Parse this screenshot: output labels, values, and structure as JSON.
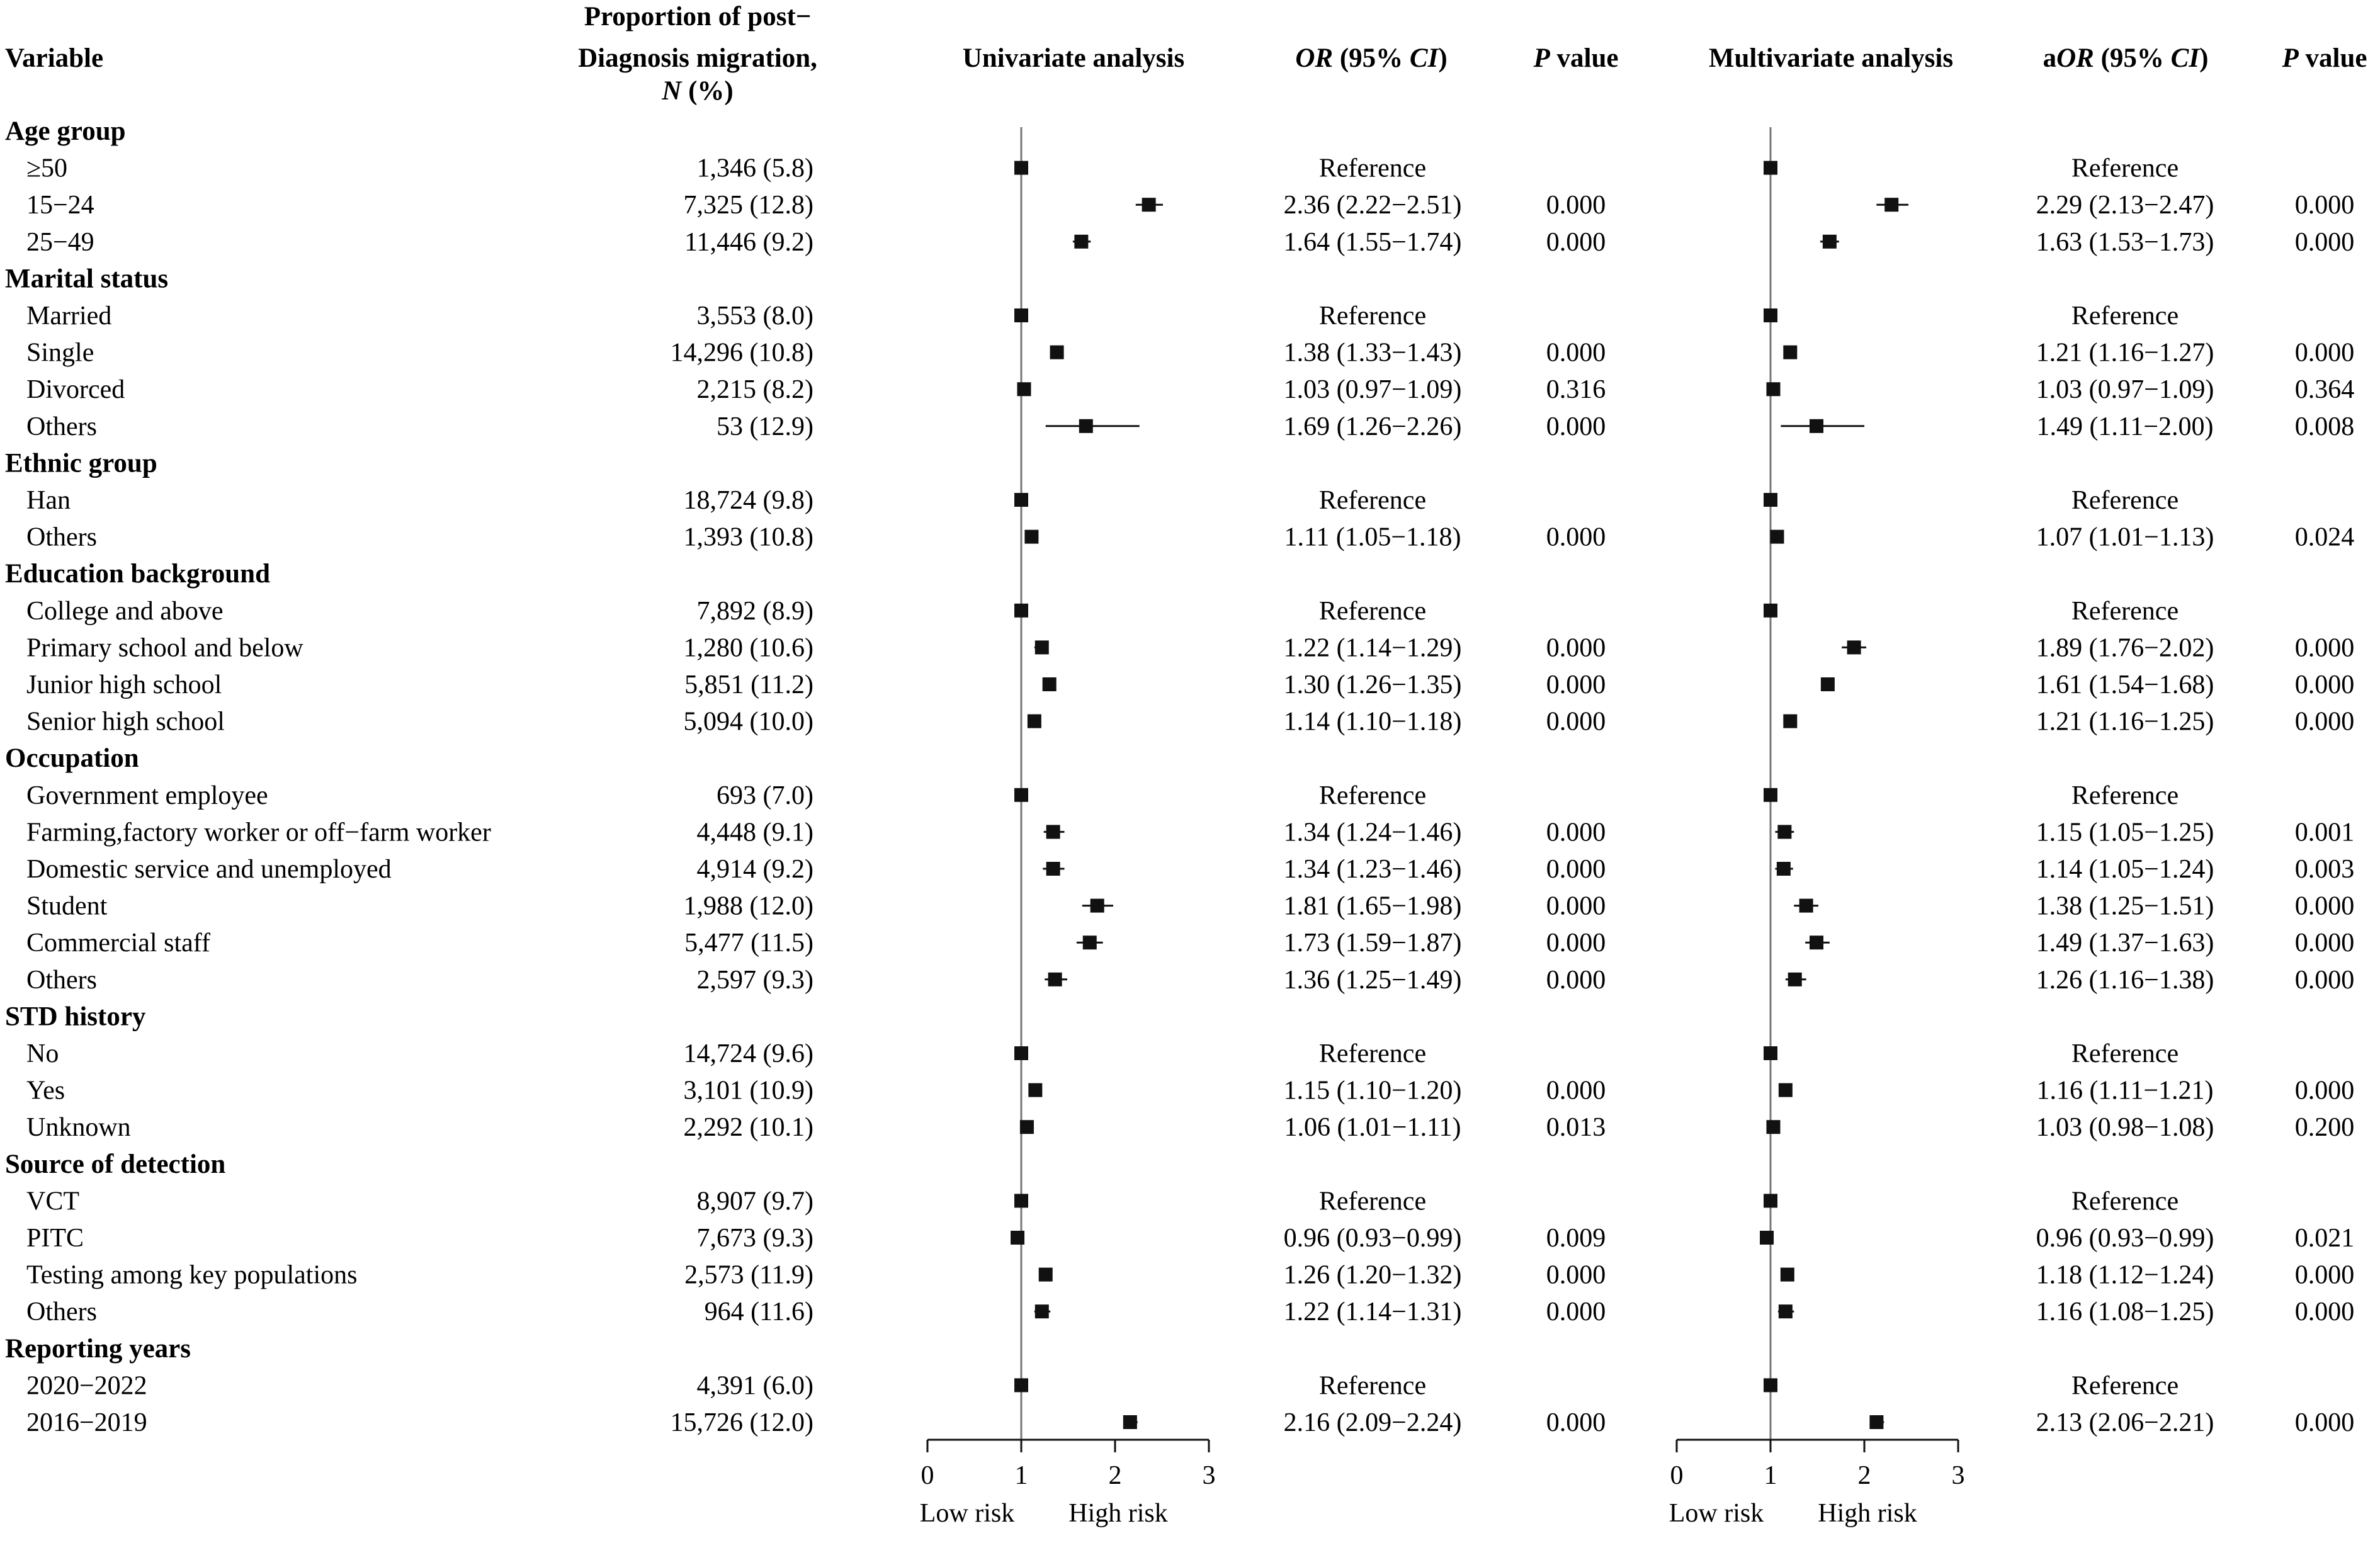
{
  "header": {
    "variable": "Variable",
    "proportion_line1": "Proportion of post−",
    "proportion_line2": "Diagnosis migration,",
    "proportion_line3_n": "N",
    "proportion_line3_pct": " (%)",
    "univariate": "Univariate analysis",
    "or_main": "OR",
    "or_ci": " (95% ",
    "or_ci_italic": "CI",
    "or_close": ")",
    "p_italic": "P",
    "p_rest": " value",
    "multivariate": "Multivariate analysis",
    "aor_prefix": "a",
    "aor_main": "OR",
    "aor_ci": " (95% ",
    "aor_ci_italic": "CI",
    "aor_close": ")",
    "p2_italic": "P",
    "p2_rest": " value"
  },
  "axis": {
    "ticks": [
      "0",
      "1",
      "2",
      "3"
    ],
    "low_label": "Low risk",
    "high_label": "High risk"
  },
  "chart_data": {
    "type": "forest",
    "reference_line": 1,
    "xlim": [
      0,
      3
    ],
    "groups": [
      {
        "name": "Age group",
        "rows": [
          {
            "label": "≥50",
            "n": "1,346 (5.8)",
            "ref": true,
            "ref_text": "Reference"
          },
          {
            "label": "15−24",
            "n": "7,325 (12.8)",
            "or": 2.36,
            "lo": 2.22,
            "hi": 2.51,
            "or_text": "2.36 (2.22−2.51)",
            "p": "0.000",
            "aor": 2.29,
            "alo": 2.13,
            "ahi": 2.47,
            "aor_text": "2.29 (2.13−2.47)",
            "ap": "0.000"
          },
          {
            "label": "25−49",
            "n": "11,446 (9.2)",
            "or": 1.64,
            "lo": 1.55,
            "hi": 1.74,
            "or_text": "1.64 (1.55−1.74)",
            "p": "0.000",
            "aor": 1.63,
            "alo": 1.53,
            "ahi": 1.73,
            "aor_text": "1.63 (1.53−1.73)",
            "ap": "0.000"
          }
        ]
      },
      {
        "name": "Marital status",
        "rows": [
          {
            "label": "Married",
            "n": "3,553 (8.0)",
            "ref": true,
            "ref_text": "Reference"
          },
          {
            "label": "Single",
            "n": "14,296 (10.8)",
            "or": 1.38,
            "lo": 1.33,
            "hi": 1.43,
            "or_text": "1.38 (1.33−1.43)",
            "p": "0.000",
            "aor": 1.21,
            "alo": 1.16,
            "ahi": 1.27,
            "aor_text": "1.21 (1.16−1.27)",
            "ap": "0.000"
          },
          {
            "label": "Divorced",
            "n": "2,215 (8.2)",
            "or": 1.03,
            "lo": 0.97,
            "hi": 1.09,
            "or_text": "1.03 (0.97−1.09)",
            "p": "0.316",
            "aor": 1.03,
            "alo": 0.97,
            "ahi": 1.09,
            "aor_text": "1.03 (0.97−1.09)",
            "ap": "0.364"
          },
          {
            "label": "Others",
            "n": "53 (12.9)",
            "or": 1.69,
            "lo": 1.26,
            "hi": 2.26,
            "or_text": "1.69 (1.26−2.26)",
            "p": "0.000",
            "aor": 1.49,
            "alo": 1.11,
            "ahi": 2.0,
            "aor_text": "1.49 (1.11−2.00)",
            "ap": "0.008"
          }
        ]
      },
      {
        "name": "Ethnic group",
        "rows": [
          {
            "label": "Han",
            "n": "18,724 (9.8)",
            "ref": true,
            "ref_text": "Reference"
          },
          {
            "label": "Others",
            "n": "1,393 (10.8)",
            "or": 1.11,
            "lo": 1.05,
            "hi": 1.18,
            "or_text": "1.11 (1.05−1.18)",
            "p": "0.000",
            "aor": 1.07,
            "alo": 1.01,
            "ahi": 1.13,
            "aor_text": "1.07 (1.01−1.13)",
            "ap": "0.024"
          }
        ]
      },
      {
        "name": "Education background",
        "rows": [
          {
            "label": "College and above",
            "n": "7,892 (8.9)",
            "ref": true,
            "ref_text": "Reference"
          },
          {
            "label": "Primary school and below",
            "n": "1,280 (10.6)",
            "or": 1.22,
            "lo": 1.14,
            "hi": 1.29,
            "or_text": "1.22 (1.14−1.29)",
            "p": "0.000",
            "aor": 1.89,
            "alo": 1.76,
            "ahi": 2.02,
            "aor_text": "1.89 (1.76−2.02)",
            "ap": "0.000"
          },
          {
            "label": "Junior high school",
            "n": "5,851 (11.2)",
            "or": 1.3,
            "lo": 1.26,
            "hi": 1.35,
            "or_text": "1.30 (1.26−1.35)",
            "p": "0.000",
            "aor": 1.61,
            "alo": 1.54,
            "ahi": 1.68,
            "aor_text": "1.61 (1.54−1.68)",
            "ap": "0.000"
          },
          {
            "label": "Senior high school",
            "n": "5,094 (10.0)",
            "or": 1.14,
            "lo": 1.1,
            "hi": 1.18,
            "or_text": "1.14 (1.10−1.18)",
            "p": "0.000",
            "aor": 1.21,
            "alo": 1.16,
            "ahi": 1.25,
            "aor_text": "1.21 (1.16−1.25)",
            "ap": "0.000"
          }
        ]
      },
      {
        "name": "Occupation",
        "rows": [
          {
            "label": "Government employee",
            "n": "693 (7.0)",
            "ref": true,
            "ref_text": "Reference"
          },
          {
            "label": "Farming,factory worker or off−farm worker",
            "n": "4,448 (9.1)",
            "or": 1.34,
            "lo": 1.24,
            "hi": 1.46,
            "or_text": "1.34 (1.24−1.46)",
            "p": "0.000",
            "aor": 1.15,
            "alo": 1.05,
            "ahi": 1.25,
            "aor_text": "1.15 (1.05−1.25)",
            "ap": "0.001"
          },
          {
            "label": "Domestic service and unemployed",
            "n": "4,914 (9.2)",
            "or": 1.34,
            "lo": 1.23,
            "hi": 1.46,
            "or_text": "1.34 (1.23−1.46)",
            "p": "0.000",
            "aor": 1.14,
            "alo": 1.05,
            "ahi": 1.24,
            "aor_text": "1.14 (1.05−1.24)",
            "ap": "0.003"
          },
          {
            "label": "Student",
            "n": "1,988 (12.0)",
            "or": 1.81,
            "lo": 1.65,
            "hi": 1.98,
            "or_text": "1.81 (1.65−1.98)",
            "p": "0.000",
            "aor": 1.38,
            "alo": 1.25,
            "ahi": 1.51,
            "aor_text": "1.38 (1.25−1.51)",
            "ap": "0.000"
          },
          {
            "label": "Commercial staff",
            "n": "5,477 (11.5)",
            "or": 1.73,
            "lo": 1.59,
            "hi": 1.87,
            "or_text": "1.73 (1.59−1.87)",
            "p": "0.000",
            "aor": 1.49,
            "alo": 1.37,
            "ahi": 1.63,
            "aor_text": "1.49 (1.37−1.63)",
            "ap": "0.000"
          },
          {
            "label": "Others",
            "n": "2,597 (9.3)",
            "or": 1.36,
            "lo": 1.25,
            "hi": 1.49,
            "or_text": "1.36 (1.25−1.49)",
            "p": "0.000",
            "aor": 1.26,
            "alo": 1.16,
            "ahi": 1.38,
            "aor_text": "1.26 (1.16−1.38)",
            "ap": "0.000"
          }
        ]
      },
      {
        "name": "STD history",
        "rows": [
          {
            "label": "No",
            "n": "14,724 (9.6)",
            "ref": true,
            "ref_text": "Reference"
          },
          {
            "label": "Yes",
            "n": "3,101 (10.9)",
            "or": 1.15,
            "lo": 1.1,
            "hi": 1.2,
            "or_text": "1.15 (1.10−1.20)",
            "p": "0.000",
            "aor": 1.16,
            "alo": 1.11,
            "ahi": 1.21,
            "aor_text": "1.16 (1.11−1.21)",
            "ap": "0.000"
          },
          {
            "label": "Unknown",
            "n": "2,292 (10.1)",
            "or": 1.06,
            "lo": 1.01,
            "hi": 1.11,
            "or_text": "1.06 (1.01−1.11)",
            "p": "0.013",
            "aor": 1.03,
            "alo": 0.98,
            "ahi": 1.08,
            "aor_text": "1.03 (0.98−1.08)",
            "ap": "0.200"
          }
        ]
      },
      {
        "name": "Source of detection",
        "rows": [
          {
            "label": "VCT",
            "n": "8,907 (9.7)",
            "ref": true,
            "ref_text": "Reference"
          },
          {
            "label": "PITC",
            "n": "7,673 (9.3)",
            "or": 0.96,
            "lo": 0.93,
            "hi": 0.99,
            "or_text": "0.96 (0.93−0.99)",
            "p": "0.009",
            "aor": 0.96,
            "alo": 0.93,
            "ahi": 0.99,
            "aor_text": "0.96 (0.93−0.99)",
            "ap": "0.021"
          },
          {
            "label": "Testing among key populations",
            "n": "2,573 (11.9)",
            "or": 1.26,
            "lo": 1.2,
            "hi": 1.32,
            "or_text": "1.26 (1.20−1.32)",
            "p": "0.000",
            "aor": 1.18,
            "alo": 1.12,
            "ahi": 1.24,
            "aor_text": "1.18 (1.12−1.24)",
            "ap": "0.000"
          },
          {
            "label": "Others",
            "n": "964 (11.6)",
            "or": 1.22,
            "lo": 1.14,
            "hi": 1.31,
            "or_text": "1.22 (1.14−1.31)",
            "p": "0.000",
            "aor": 1.16,
            "alo": 1.08,
            "ahi": 1.25,
            "aor_text": "1.16 (1.08−1.25)",
            "ap": "0.000"
          }
        ]
      },
      {
        "name": "Reporting years",
        "rows": [
          {
            "label": "2020−2022",
            "n": "4,391 (6.0)",
            "ref": true,
            "ref_text": "Reference"
          },
          {
            "label": "2016−2019",
            "n": "15,726 (12.0)",
            "or": 2.16,
            "lo": 2.09,
            "hi": 2.24,
            "or_text": "2.16 (2.09−2.24)",
            "p": "0.000",
            "aor": 2.13,
            "alo": 2.06,
            "ahi": 2.21,
            "aor_text": "2.13 (2.06−2.21)",
            "ap": "0.000"
          }
        ]
      }
    ]
  }
}
